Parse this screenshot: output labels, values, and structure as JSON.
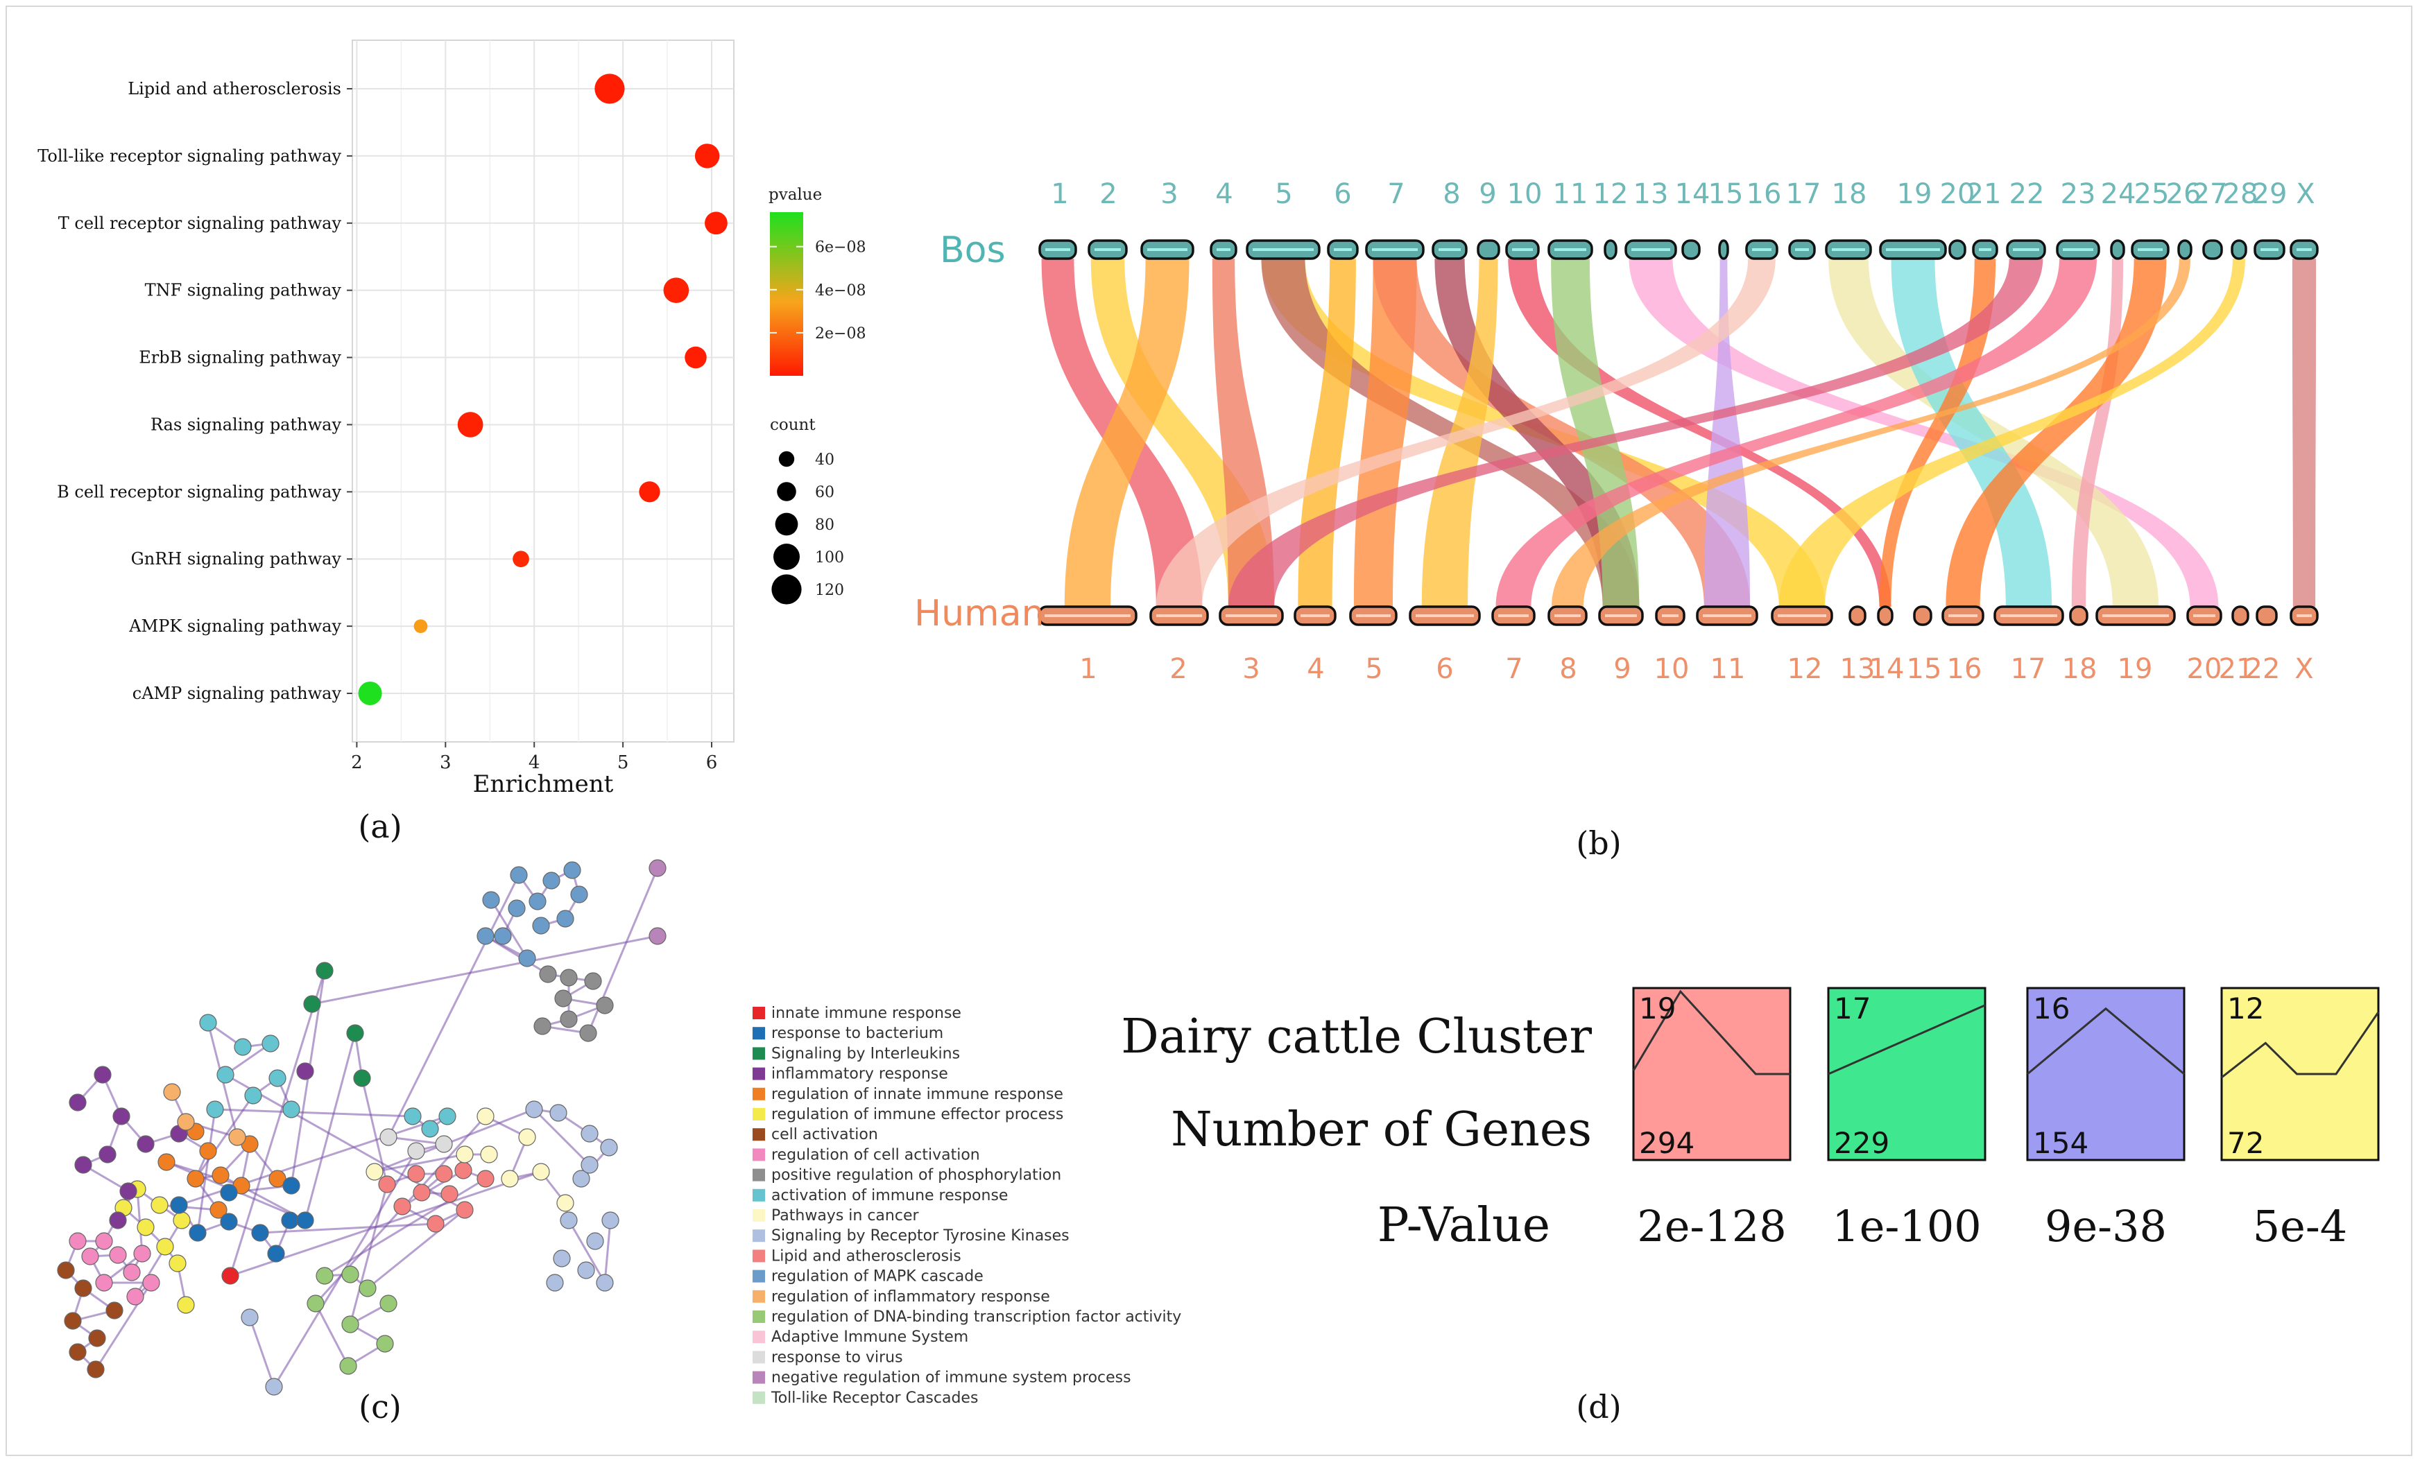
{
  "panel_labels": {
    "a": "(a)",
    "b": "(b)",
    "c": "(c)",
    "d": "(d)"
  },
  "chart_data": [
    {
      "panel": "a",
      "type": "scatter",
      "xlabel": "Enrichment",
      "xlim": [
        1.95,
        6.25
      ],
      "xticks": [
        2,
        3,
        4,
        5,
        6
      ],
      "categories": [
        "Lipid and atherosclerosis",
        "Toll-like receptor signaling pathway",
        "T cell receptor signaling pathway",
        "TNF signaling pathway",
        "ErbB signaling pathway",
        "Ras signaling pathway",
        "B cell receptor signaling pathway",
        "GnRH signaling pathway",
        "AMPK signaling pathway",
        "cAMP signaling pathway"
      ],
      "enrichment": [
        4.85,
        5.95,
        6.05,
        5.6,
        5.82,
        3.28,
        5.3,
        3.85,
        2.72,
        2.15
      ],
      "count": [
        120,
        90,
        80,
        95,
        75,
        95,
        70,
        45,
        30,
        85
      ],
      "pvalue": [
        1e-09,
        1e-09,
        1e-09,
        2e-09,
        1e-09,
        2e-09,
        1e-09,
        4e-09,
        3.2e-08,
        7.6e-08
      ],
      "color_legend": {
        "title": "pvalue",
        "ticks": [
          "6e−08",
          "4e−08",
          "2e−08"
        ],
        "tick_values": [
          6e-08,
          4e-08,
          2e-08
        ],
        "range": [
          0,
          7.6e-08
        ],
        "low_color": "#ff1a00",
        "mid_color": "#f7a51c",
        "high_color": "#1ee01e"
      },
      "size_legend": {
        "title": "count",
        "values": [
          40,
          60,
          80,
          100,
          120
        ],
        "labels": [
          "40",
          "60",
          "80",
          "100",
          "120"
        ]
      }
    },
    {
      "panel": "b",
      "type": "synteny",
      "top_label": "Bos",
      "bottom_label": "Human",
      "top_chromosomes": [
        "1",
        "2",
        "3",
        "4",
        "5",
        "6",
        "7",
        "8",
        "9",
        "10",
        "11",
        "12",
        "13",
        "14",
        "15",
        "16",
        "17",
        "18",
        "19",
        "20",
        "21",
        "22",
        "23",
        "24",
        "25",
        "26",
        "27",
        "28",
        "29",
        "X"
      ],
      "bottom_chromosomes": [
        "1",
        "2",
        "3",
        "4",
        "5",
        "6",
        "7",
        "8",
        "9",
        "10",
        "11",
        "12",
        "13",
        "14",
        "15",
        "16",
        "17",
        "18",
        "19",
        "20",
        "21",
        "22",
        "X"
      ],
      "top_color": "#52b3b3",
      "bottom_color": "#f08a5d",
      "links": [
        {
          "from": "1",
          "to": "2",
          "color": "#f05d6b"
        },
        {
          "from": "2",
          "to": "3",
          "color": "#ffcf3f"
        },
        {
          "from": "3",
          "to": "1",
          "color": "#ffa93a"
        },
        {
          "from": "4",
          "to": "3",
          "color": "#ee7b60"
        },
        {
          "from": "5",
          "to": "12",
          "color": "#ffd640"
        },
        {
          "from": "5",
          "to": "9",
          "color": "#c06a63"
        },
        {
          "from": "6",
          "to": "4",
          "color": "#ffb528"
        },
        {
          "from": "7",
          "to": "5",
          "color": "#ff8a3c"
        },
        {
          "from": "7",
          "to": "11",
          "color": "#f7845e"
        },
        {
          "from": "8",
          "to": "9",
          "color": "#b04a5a"
        },
        {
          "from": "9",
          "to": "6",
          "color": "#ffc23a"
        },
        {
          "from": "10",
          "to": "14",
          "color": "#f04e66"
        },
        {
          "from": "11",
          "to": "9",
          "color": "#9ccc7a"
        },
        {
          "from": "13",
          "to": "20",
          "color": "#ffa9d8"
        },
        {
          "from": "15",
          "to": "11",
          "color": "#c9a3ee"
        },
        {
          "from": "16",
          "to": "2",
          "color": "#f8c7b8"
        },
        {
          "from": "18",
          "to": "19",
          "color": "#eee8a8"
        },
        {
          "from": "19",
          "to": "17",
          "color": "#7fe0e0"
        },
        {
          "from": "21",
          "to": "14",
          "color": "#ff7a2a"
        },
        {
          "from": "22",
          "to": "3",
          "color": "#e0607e"
        },
        {
          "from": "23",
          "to": "7",
          "color": "#f7708a"
        },
        {
          "from": "24",
          "to": "18",
          "color": "#f5a0b0"
        },
        {
          "from": "25",
          "to": "16",
          "color": "#ff7a2a"
        },
        {
          "from": "26",
          "to": "8",
          "color": "#ffa64d"
        },
        {
          "from": "28",
          "to": "12",
          "color": "#ffd640"
        },
        {
          "from": "X",
          "to": "X",
          "color": "#d98080"
        }
      ]
    },
    {
      "panel": "c",
      "type": "network",
      "legend": [
        {
          "label": "innate immune response",
          "color": "#e8262a"
        },
        {
          "label": "response to bacterium",
          "color": "#1f6fb4"
        },
        {
          "label": "Signaling by Interleukins",
          "color": "#1e8c50"
        },
        {
          "label": "inflammatory response",
          "color": "#7f3a93"
        },
        {
          "label": "regulation of innate immune response",
          "color": "#f07e22"
        },
        {
          "label": "regulation of immune effector process",
          "color": "#f5ea4c"
        },
        {
          "label": "cell activation",
          "color": "#9c4a1f"
        },
        {
          "label": "regulation of cell activation",
          "color": "#f28ac0"
        },
        {
          "label": "positive regulation of phosphorylation",
          "color": "#8e8e8e"
        },
        {
          "label": "activation of immune response",
          "color": "#65c4cf"
        },
        {
          "label": "Pathways in cancer",
          "color": "#fdf7c6"
        },
        {
          "label": "Signaling by Receptor Tyrosine Kinases",
          "color": "#aebfe0"
        },
        {
          "label": "Lipid and atherosclerosis",
          "color": "#f47f7f"
        },
        {
          "label": "regulation of MAPK cascade",
          "color": "#6b9cc9"
        },
        {
          "label": "regulation of inflammatory response",
          "color": "#f6b06a"
        },
        {
          "label": "regulation of DNA-binding transcription factor activity",
          "color": "#98c976"
        },
        {
          "label": "Adaptive Immune System",
          "color": "#f9c4d6"
        },
        {
          "label": "response to virus",
          "color": "#dcdcdc"
        },
        {
          "label": "negative regulation of immune system process",
          "color": "#b984b9"
        },
        {
          "label": "Toll-like Receptor Cascades",
          "color": "#c4e3c4"
        }
      ]
    },
    {
      "panel": "d",
      "type": "table",
      "row_labels": [
        "Dairy cattle Cluster",
        "Number of Genes",
        "P-Value"
      ],
      "clusters": [
        {
          "cluster": "19",
          "genes": "294",
          "pvalue": "2e-128",
          "color": "#ff9a98",
          "profile": [
            0.58,
            0.02,
            0.52,
            0.52
          ]
        },
        {
          "cluster": "17",
          "genes": "229",
          "pvalue": "1e-100",
          "color": "#3fe88f",
          "profile": [
            0.5,
            0.36,
            0.22,
            0.08
          ]
        },
        {
          "cluster": "16",
          "genes": "154",
          "pvalue": "9e-38",
          "color": "#9d9cf2",
          "profile": [
            0.52,
            0.12,
            0.52,
            0.52
          ]
        },
        {
          "cluster": "12",
          "genes": "72",
          "pvalue": "5e-4",
          "color": "#fcf68b",
          "profile": [
            0.48,
            0.32,
            0.5,
            0.5,
            0.14
          ]
        }
      ]
    }
  ]
}
